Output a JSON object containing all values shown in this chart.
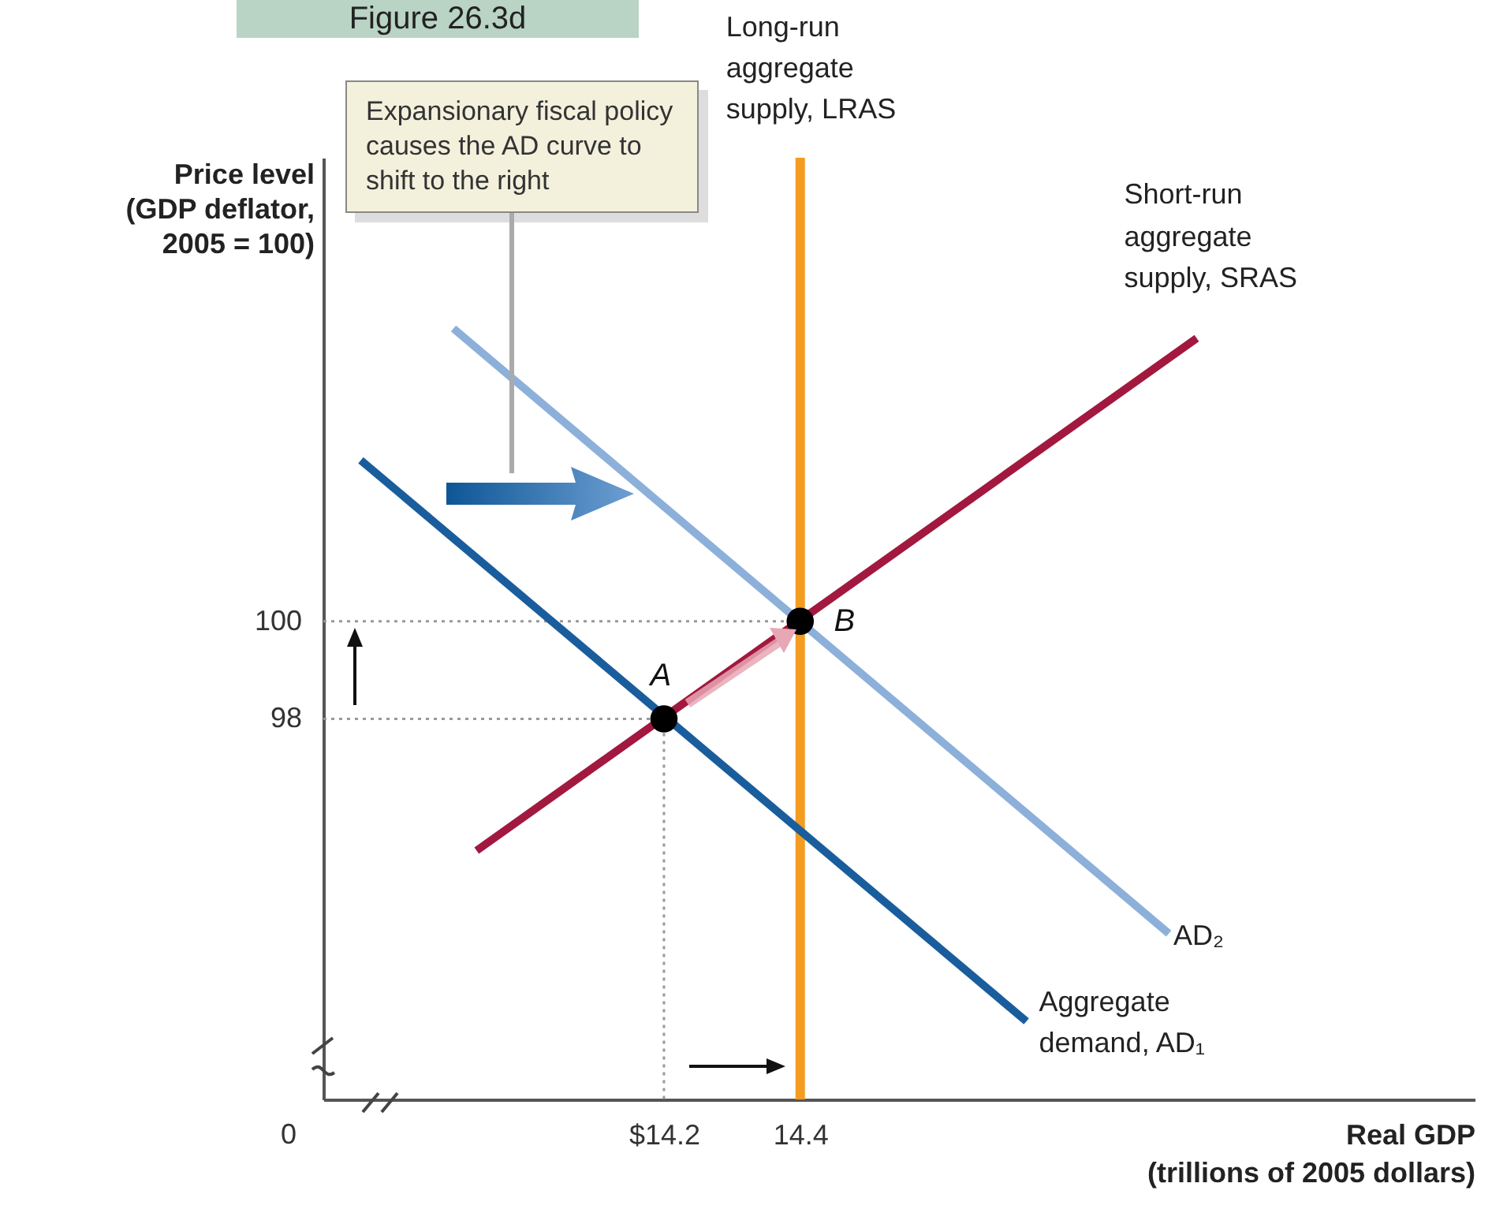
{
  "chart_data": {
    "type": "line",
    "title": "Figure 26.3d",
    "xlabel": "Real GDP\n(trillions of 2005 dollars)",
    "ylabel": "Price level\n(GDP deflator,\n2005 = 100)",
    "annotations": [
      "Expansionary fiscal policy causes the AD curve to shift to the right",
      "0",
      {
        "text": "A",
        "x": 14.2,
        "y": 98
      },
      {
        "text": "B",
        "x": 14.4,
        "y": 100
      }
    ],
    "xlim": [
      13.7,
      15.39
    ],
    "ylim": [
      90.2,
      109.5
    ],
    "xticks": [
      {
        "value": 14.2,
        "label": "$14.2"
      },
      14.4
    ],
    "yticks": [
      98,
      100
    ],
    "ref_lines": [
      {
        "axis": "x",
        "value": 14.4,
        "label": "Long-run\naggregate\nsupply, LRAS",
        "color": "#f39c1f"
      }
    ],
    "series": [
      {
        "color": "#999999",
        "line_style": "dotted",
        "x": [
          13.7,
          14.4
        ],
        "values": [
          100,
          100
        ]
      },
      {
        "color": "#999999",
        "line_style": "dotted",
        "x": [
          13.7,
          14.2,
          14.2
        ],
        "values": [
          98,
          98,
          90.2
        ]
      },
      {
        "name": "Aggregate\ndemand, AD₁",
        "color": "#1a5d9c",
        "x": [
          13.755,
          14.732
        ],
        "values": [
          103.3,
          91.8
        ]
      },
      {
        "name": "AD₂",
        "color": "#8cb0d9",
        "x": [
          13.891,
          14.941
        ],
        "values": [
          106.0,
          93.6
        ]
      },
      {
        "name": "Short-run\naggregate\nsupply, SRAS",
        "color": "#a2183f",
        "x": [
          13.925,
          14.982
        ],
        "values": [
          95.3,
          105.8
        ]
      },
      {
        "type": "scatter",
        "color": "#000000",
        "marker": "circle",
        "x": [
          14.2,
          14.4
        ],
        "values": [
          98,
          100
        ]
      }
    ]
  }
}
